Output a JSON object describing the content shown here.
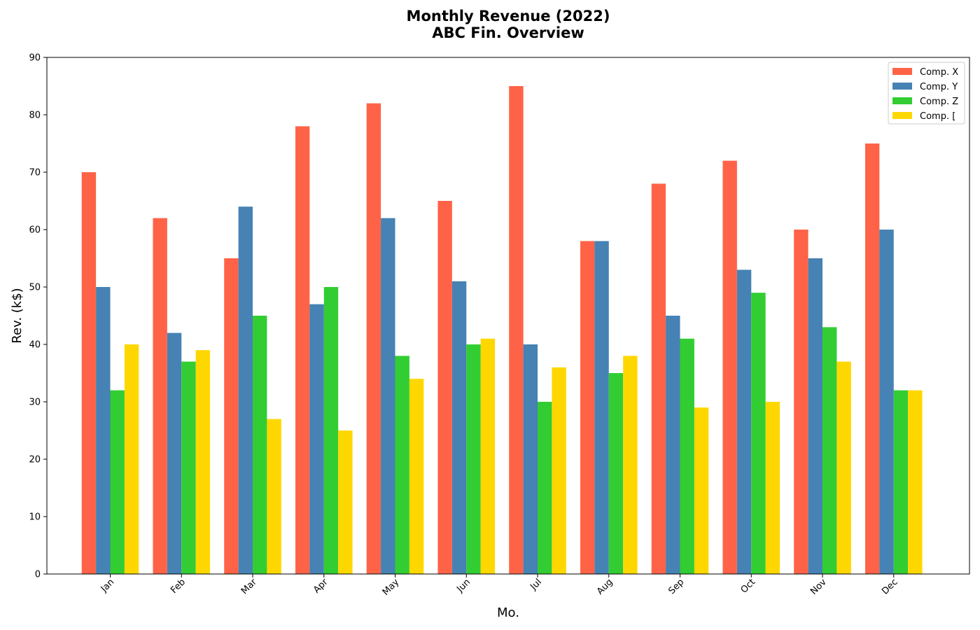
{
  "chart_data": {
    "type": "bar",
    "title_line1": "Monthly Revenue (2022)",
    "title_line2": "ABC Fin. Overview",
    "xlabel": "Mo.",
    "ylabel": "Rev. (k$)",
    "ylim": [
      0,
      90
    ],
    "yticks": [
      0,
      10,
      20,
      30,
      40,
      50,
      60,
      70,
      80,
      90
    ],
    "categories": [
      "Jan",
      "Feb",
      "Mar",
      "Apr",
      "May",
      "Jun",
      "Jul",
      "Aug",
      "Sep",
      "Oct",
      "Nov",
      "Dec"
    ],
    "legend_position": "top-right",
    "grid": false,
    "series": [
      {
        "name": "Comp. X",
        "color": "#ff6347",
        "values": [
          70,
          62,
          55,
          78,
          82,
          65,
          85,
          58,
          68,
          72,
          60,
          75
        ]
      },
      {
        "name": "Comp. Y",
        "color": "#4682b4",
        "values": [
          50,
          42,
          64,
          47,
          62,
          51,
          40,
          58,
          45,
          53,
          55,
          60
        ]
      },
      {
        "name": "Comp. Z",
        "color": "#32cd32",
        "values": [
          32,
          37,
          45,
          50,
          38,
          40,
          30,
          35,
          41,
          49,
          43,
          32
        ]
      },
      {
        "name": "Comp. [",
        "color": "#ffd700",
        "values": [
          40,
          39,
          27,
          25,
          34,
          41,
          36,
          38,
          29,
          30,
          37,
          32
        ]
      }
    ]
  }
}
